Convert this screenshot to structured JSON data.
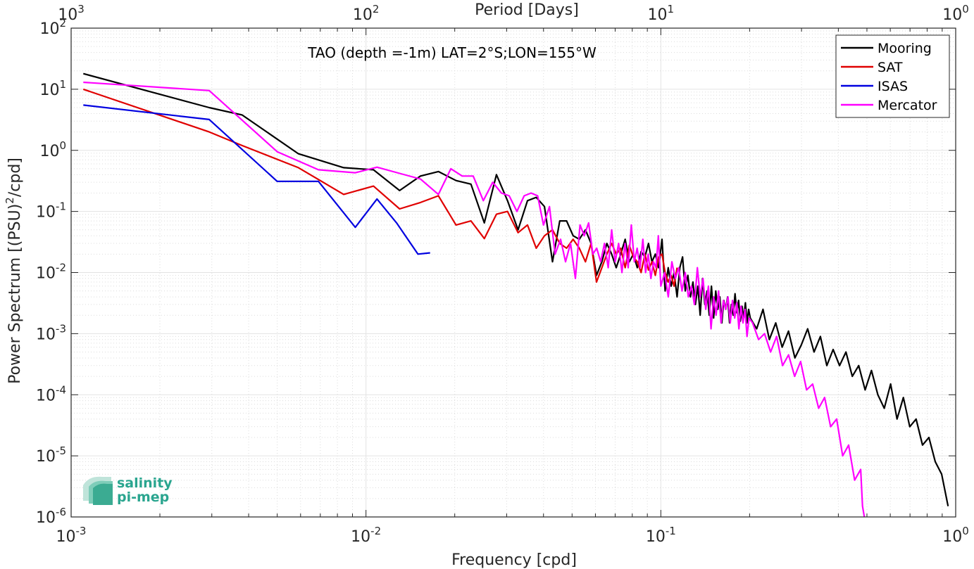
{
  "chart_data": {
    "type": "line",
    "title": "TAO (depth =-1m) LAT=2°S;LON=155°W",
    "xlabel": "Frequency [cpd]",
    "ylabel": "Power Spectrum [(PSU)²/cpd]",
    "ylabel_base": "Power Spectrum [(PSU)",
    "ylabel_sup": "2",
    "ylabel_end": "/cpd]",
    "top_xlabel": "Period [Days]",
    "xscale": "log",
    "yscale": "log",
    "xlim": [
      0.001,
      1
    ],
    "ylim": [
      1e-06,
      100
    ],
    "grid": true,
    "legend_position": "top-right",
    "x_ticks": [
      {
        "base": "10",
        "exp": "-3",
        "value": 0.001
      },
      {
        "base": "10",
        "exp": "-2",
        "value": 0.01
      },
      {
        "base": "10",
        "exp": "-1",
        "value": 0.1
      },
      {
        "base": "10",
        "exp": "0",
        "value": 1
      }
    ],
    "top_ticks": [
      {
        "base": "10",
        "exp": "3",
        "value": 0.001
      },
      {
        "base": "10",
        "exp": "2",
        "value": 0.01
      },
      {
        "base": "10",
        "exp": "1",
        "value": 0.1
      },
      {
        "base": "10",
        "exp": "0",
        "value": 1
      }
    ],
    "y_ticks": [
      {
        "base": "10",
        "exp": "2",
        "value": 100
      },
      {
        "base": "10",
        "exp": "1",
        "value": 10
      },
      {
        "base": "10",
        "exp": "0",
        "value": 1
      },
      {
        "base": "10",
        "exp": "-1",
        "value": 0.1
      },
      {
        "base": "10",
        "exp": "-2",
        "value": 0.01
      },
      {
        "base": "10",
        "exp": "-3",
        "value": 0.001
      },
      {
        "base": "10",
        "exp": "-4",
        "value": 0.0001
      },
      {
        "base": "10",
        "exp": "-5",
        "value": 1e-05
      },
      {
        "base": "10",
        "exp": "-6",
        "value": 1e-06
      }
    ],
    "series": [
      {
        "name": "Mooring",
        "color": "#000000",
        "x": [
          0.0011,
          0.00294,
          0.0038,
          0.0059,
          0.0084,
          0.0106,
          0.013,
          0.0153,
          0.0176,
          0.0202,
          0.0227,
          0.0252,
          0.0277,
          0.0302,
          0.0328,
          0.0353,
          0.0378,
          0.0403,
          0.0429,
          0.0454,
          0.0479,
          0.0504,
          0.0529,
          0.0555,
          0.058,
          0.0605,
          0.0631,
          0.0656,
          0.0681,
          0.0706,
          0.0731,
          0.0757,
          0.0782,
          0.0807,
          0.0832,
          0.0857,
          0.0883,
          0.0908,
          0.0933,
          0.0958,
          0.0983,
          0.1009,
          0.1034,
          0.1059,
          0.1084,
          0.1109,
          0.1135,
          0.116,
          0.1185,
          0.121,
          0.1235,
          0.126,
          0.1285,
          0.131,
          0.1335,
          0.136,
          0.1385,
          0.141,
          0.1435,
          0.146,
          0.1485,
          0.151,
          0.1535,
          0.156,
          0.1585,
          0.161,
          0.1635,
          0.166,
          0.1685,
          0.171,
          0.1735,
          0.176,
          0.1785,
          0.181,
          0.1835,
          0.186,
          0.1885,
          0.191,
          0.1935,
          0.196,
          0.1985,
          0.201,
          0.2113,
          0.2221,
          0.2334,
          0.2453,
          0.2579,
          0.271,
          0.2849,
          0.2994,
          0.3147,
          0.3308,
          0.3477,
          0.3655,
          0.3841,
          0.4038,
          0.4244,
          0.4461,
          0.4689,
          0.4929,
          0.518,
          0.5445,
          0.5724,
          0.6016,
          0.6324,
          0.6647,
          0.6987,
          0.7343,
          0.7719,
          0.8113,
          0.8528,
          0.8964,
          0.9422
        ],
        "y": [
          18,
          5,
          3.8,
          0.88,
          0.52,
          0.48,
          0.22,
          0.38,
          0.45,
          0.32,
          0.28,
          0.065,
          0.4,
          0.15,
          0.05,
          0.15,
          0.17,
          0.12,
          0.015,
          0.07,
          0.07,
          0.04,
          0.035,
          0.05,
          0.03,
          0.009,
          0.015,
          0.03,
          0.02,
          0.012,
          0.02,
          0.035,
          0.015,
          0.02,
          0.012,
          0.022,
          0.018,
          0.03,
          0.015,
          0.02,
          0.012,
          0.035,
          0.005,
          0.012,
          0.006,
          0.01,
          0.004,
          0.012,
          0.018,
          0.005,
          0.009,
          0.004,
          0.007,
          0.003,
          0.006,
          0.002,
          0.008,
          0.003,
          0.005,
          0.002,
          0.006,
          0.0018,
          0.005,
          0.0025,
          0.004,
          0.0015,
          0.0035,
          0.0025,
          0.004,
          0.0015,
          0.003,
          0.002,
          0.0045,
          0.0022,
          0.0035,
          0.0016,
          0.0028,
          0.0018,
          0.0032,
          0.0015,
          0.0025,
          0.0018,
          0.0012,
          0.0025,
          0.0008,
          0.0015,
          0.0006,
          0.0011,
          0.0004,
          0.00065,
          0.0012,
          0.0005,
          0.0009,
          0.0003,
          0.00055,
          0.0003,
          0.0005,
          0.0002,
          0.0003,
          0.00012,
          0.00025,
          0.0001,
          6e-05,
          0.00015,
          4e-05,
          9e-05,
          3e-05,
          4e-05,
          1.5e-05,
          2e-05,
          8e-06,
          5e-06,
          1.5e-06
        ]
      },
      {
        "name": "SAT",
        "color": "#e00000",
        "x": [
          0.0011,
          0.00294,
          0.0038,
          0.0059,
          0.0084,
          0.0106,
          0.013,
          0.0153,
          0.0176,
          0.0202,
          0.0227,
          0.0252,
          0.0277,
          0.0302,
          0.0328,
          0.0353,
          0.0378,
          0.0403,
          0.0429,
          0.0454,
          0.0479,
          0.0504,
          0.0529,
          0.0555,
          0.058,
          0.0605,
          0.0631,
          0.0656,
          0.0681,
          0.0706,
          0.0731,
          0.0757,
          0.0782,
          0.0807,
          0.0832,
          0.0857,
          0.0883,
          0.0908,
          0.0933,
          0.0958,
          0.0983,
          0.1009,
          0.1034,
          0.1059,
          0.1084,
          0.1109,
          0.1135
        ],
        "y": [
          10,
          2,
          1.2,
          0.52,
          0.19,
          0.26,
          0.11,
          0.14,
          0.18,
          0.06,
          0.07,
          0.036,
          0.09,
          0.1,
          0.045,
          0.06,
          0.025,
          0.04,
          0.05,
          0.03,
          0.025,
          0.035,
          0.025,
          0.015,
          0.03,
          0.007,
          0.012,
          0.02,
          0.03,
          0.02,
          0.025,
          0.012,
          0.028,
          0.018,
          0.015,
          0.01,
          0.02,
          0.011,
          0.015,
          0.009,
          0.018,
          0.02,
          0.01,
          0.007,
          0.009,
          0.006,
          0.012
        ]
      },
      {
        "name": "ISAS",
        "color": "#0000e0",
        "x": [
          0.0011,
          0.00294,
          0.005,
          0.0069,
          0.0092,
          0.0109,
          0.0127,
          0.015,
          0.0165
        ],
        "y": [
          5.5,
          3.2,
          0.31,
          0.31,
          0.055,
          0.16,
          0.065,
          0.02,
          0.021
        ]
      },
      {
        "name": "Mercator",
        "color": "#ff00ff",
        "x": [
          0.0011,
          0.00294,
          0.005,
          0.0069,
          0.0092,
          0.0109,
          0.013,
          0.0153,
          0.0176,
          0.0194,
          0.0212,
          0.0231,
          0.025,
          0.0269,
          0.0288,
          0.0306,
          0.0325,
          0.0344,
          0.0363,
          0.0382,
          0.04,
          0.0419,
          0.0438,
          0.0457,
          0.0475,
          0.0494,
          0.0513,
          0.0532,
          0.055,
          0.0569,
          0.0588,
          0.0606,
          0.0625,
          0.0644,
          0.0663,
          0.0681,
          0.07,
          0.0719,
          0.0738,
          0.0756,
          0.0775,
          0.0794,
          0.0813,
          0.0831,
          0.085,
          0.0869,
          0.0888,
          0.0906,
          0.0925,
          0.0944,
          0.0963,
          0.0981,
          0.1,
          0.103,
          0.106,
          0.109,
          0.112,
          0.115,
          0.118,
          0.121,
          0.124,
          0.127,
          0.13,
          0.133,
          0.136,
          0.139,
          0.142,
          0.145,
          0.148,
          0.151,
          0.154,
          0.157,
          0.16,
          0.163,
          0.166,
          0.169,
          0.172,
          0.175,
          0.178,
          0.181,
          0.184,
          0.187,
          0.19,
          0.193,
          0.196,
          0.199,
          0.2047,
          0.2145,
          0.2248,
          0.2356,
          0.2469,
          0.2588,
          0.2712,
          0.2842,
          0.2979,
          0.3122,
          0.3272,
          0.3429,
          0.3593,
          0.3766,
          0.3947,
          0.4137,
          0.4335,
          0.4543,
          0.4761,
          0.483,
          0.49
        ],
        "y": [
          13,
          9.5,
          0.95,
          0.48,
          0.43,
          0.53,
          0.42,
          0.34,
          0.19,
          0.5,
          0.38,
          0.38,
          0.15,
          0.3,
          0.2,
          0.18,
          0.1,
          0.18,
          0.2,
          0.18,
          0.06,
          0.12,
          0.02,
          0.035,
          0.015,
          0.03,
          0.008,
          0.06,
          0.04,
          0.065,
          0.02,
          0.025,
          0.015,
          0.03,
          0.012,
          0.05,
          0.015,
          0.03,
          0.01,
          0.03,
          0.012,
          0.06,
          0.015,
          0.025,
          0.012,
          0.035,
          0.01,
          0.02,
          0.008,
          0.015,
          0.012,
          0.04,
          0.006,
          0.01,
          0.004,
          0.015,
          0.008,
          0.012,
          0.005,
          0.01,
          0.004,
          0.006,
          0.003,
          0.012,
          0.004,
          0.008,
          0.0025,
          0.006,
          0.0012,
          0.004,
          0.002,
          0.005,
          0.0015,
          0.0035,
          0.0025,
          0.004,
          0.0015,
          0.0035,
          0.0018,
          0.0032,
          0.0012,
          0.0028,
          0.0015,
          0.0025,
          0.0009,
          0.0018,
          0.0015,
          0.0008,
          0.001,
          0.0005,
          0.0009,
          0.0003,
          0.00045,
          0.0002,
          0.00035,
          0.00012,
          0.00015,
          6e-05,
          9e-05,
          3e-05,
          4e-05,
          1e-05,
          1.5e-05,
          4e-06,
          6e-06,
          1.5e-06,
          1e-06
        ]
      }
    ]
  },
  "logo": {
    "line1": "salinity",
    "line2": "pi-mep",
    "color": "#2aa58f"
  }
}
